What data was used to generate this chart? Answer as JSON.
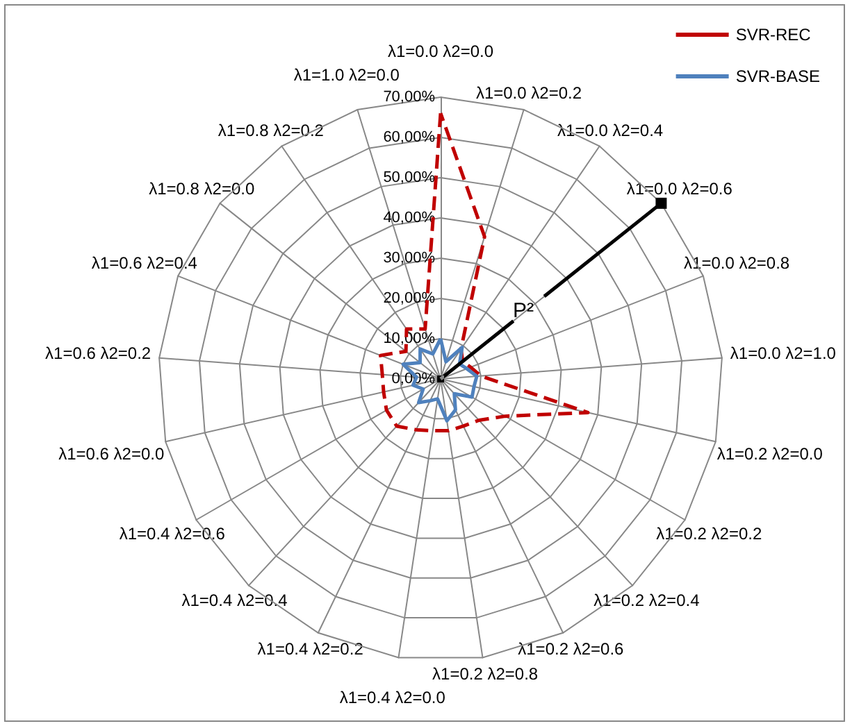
{
  "chart_data": {
    "type": "radar",
    "categories": [
      "λ1=0.0 λ2=0.0",
      "λ1=0.0 λ2=0.2",
      "λ1=0.0 λ2=0.4",
      "λ1=0.0 λ2=0.6",
      "λ1=0.0 λ2=0.8",
      "λ1=0.0 λ2=1.0",
      "λ1=0.2 λ2=0.0",
      "λ1=0.2 λ2=0.2",
      "λ1=0.2 λ2=0.4",
      "λ1=0.2 λ2=0.6",
      "λ1=0.2 λ2=0.8",
      "λ1=0.4 λ2=0.0",
      "λ1=0.4 λ2=0.2",
      "λ1=0.4 λ2=0.4",
      "λ1=0.4 λ2=0.6",
      "λ1=0.6 λ2=0.0",
      "λ1=0.6 λ2=0.2",
      "λ1=0.6 λ2=0.4",
      "λ1=0.8 λ2=0.0",
      "λ1=0.8 λ2=0.2",
      "λ1=1.0 λ2=0.0"
    ],
    "series": [
      {
        "name": "SVR-REC",
        "color": "#c00000",
        "line_style": "dashed",
        "values": [
          66,
          37,
          9,
          7,
          8,
          10,
          37.5,
          18.5,
          14,
          13,
          13,
          13,
          14,
          16,
          15.5,
          14.5,
          14.5,
          16,
          11,
          15,
          13
        ]
      },
      {
        "name": "SVR-BASE",
        "color": "#4f81bd",
        "line_style": "solid",
        "values": [
          10,
          4.5,
          9.5,
          6,
          7,
          9,
          8.5,
          9,
          5,
          8.5,
          10.5,
          5,
          6,
          8,
          5,
          7,
          6,
          10,
          6.5,
          9,
          6.5
        ]
      }
    ],
    "ylim": [
      0,
      70
    ],
    "yticks": [
      {
        "value": 0,
        "label": "0,00%"
      },
      {
        "value": 10,
        "label": "10,00%"
      },
      {
        "value": 20,
        "label": "20,00%"
      },
      {
        "value": 30,
        "label": "30,00%"
      },
      {
        "value": 40,
        "label": "40,00%"
      },
      {
        "value": 50,
        "label": "50,00%"
      },
      {
        "value": 60,
        "label": "60,00%"
      },
      {
        "value": 70,
        "label": "70,00%"
      }
    ],
    "annotations": [
      "P²"
    ],
    "legend": "top right",
    "marker": "none"
  }
}
